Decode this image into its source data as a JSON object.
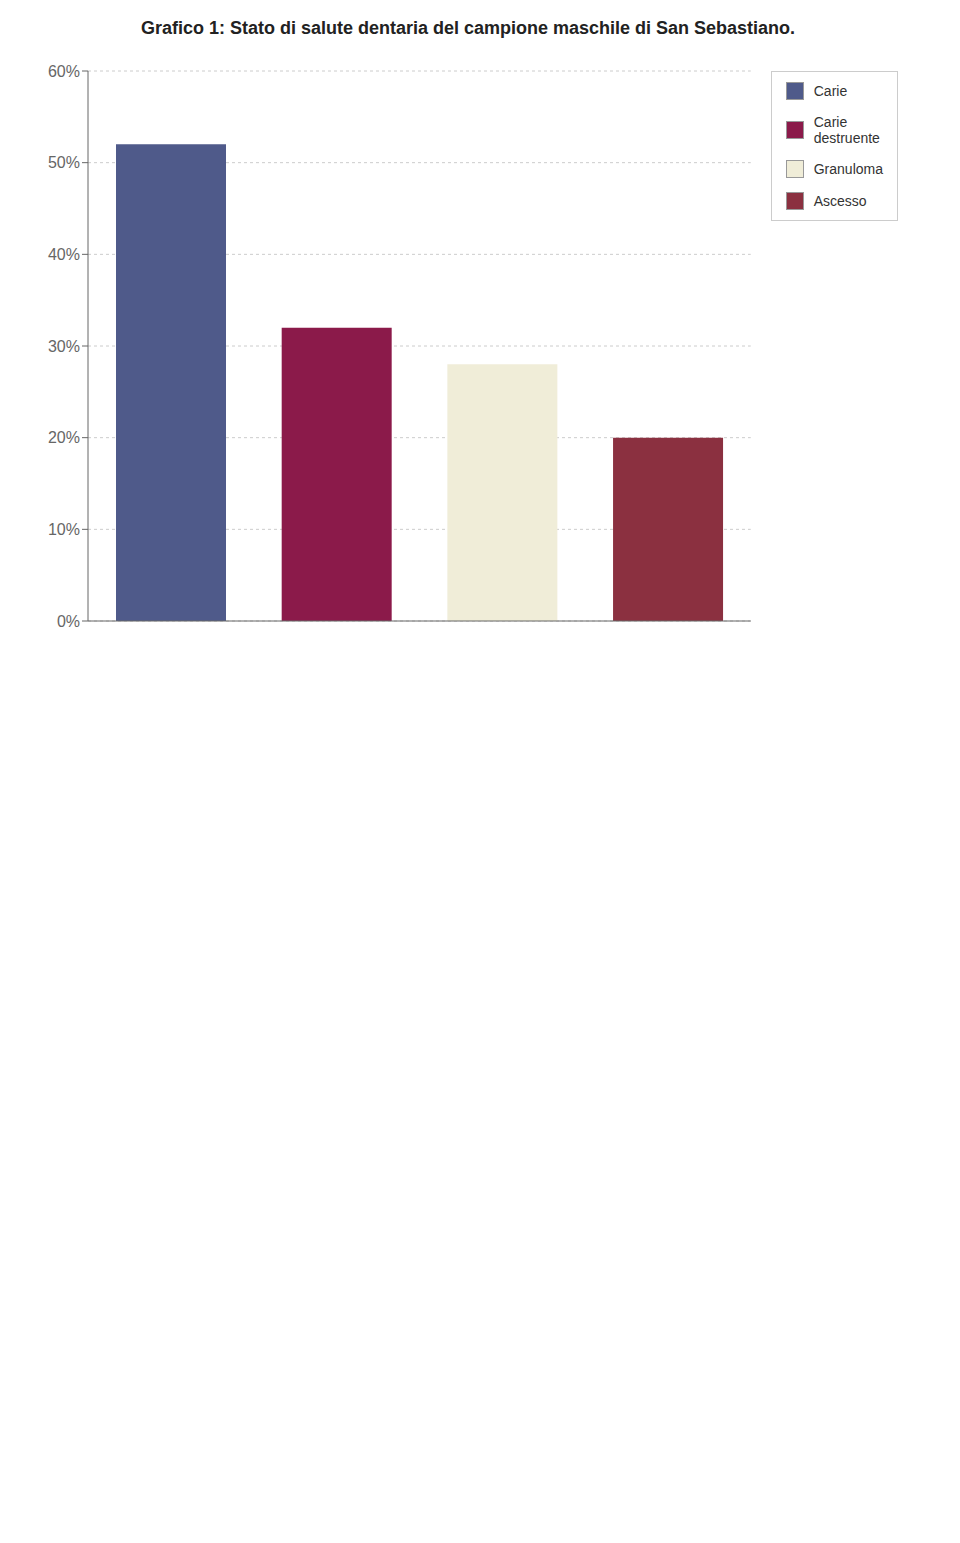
{
  "chart_data": {
    "type": "bar",
    "title": "Grafico 1: Stato di salute dentaria del campione maschile di San Sebastiano.",
    "categories": [
      "Carie",
      "Carie\ndestruente",
      "Granuloma",
      "Ascesso"
    ],
    "values": [
      52,
      32,
      28,
      20
    ],
    "colors": [
      "#4f5a8a",
      "#8b1a4a",
      "#f0edd8",
      "#8b3040"
    ],
    "ylim": [
      0,
      60
    ],
    "yticks": [
      {
        "value": 0,
        "label": "0%"
      },
      {
        "value": 10,
        "label": "10%"
      },
      {
        "value": 20,
        "label": "20%"
      },
      {
        "value": 30,
        "label": "30%"
      },
      {
        "value": 40,
        "label": "40%"
      },
      {
        "value": 50,
        "label": "50%"
      },
      {
        "value": 60,
        "label": "60%"
      }
    ],
    "grid": true,
    "legend": "right",
    "tick_labels": "y"
  }
}
